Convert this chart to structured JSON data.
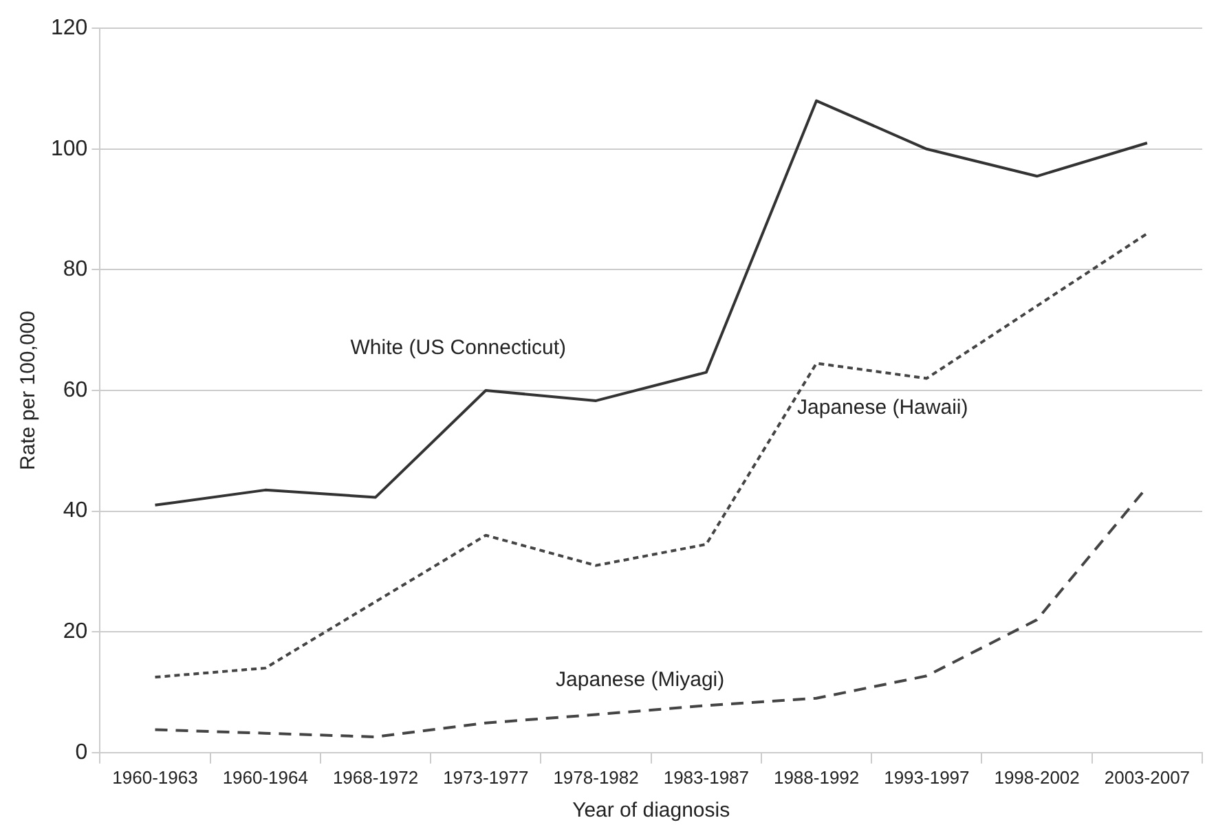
{
  "chart_data": {
    "type": "line",
    "xlabel": "Year of diagnosis",
    "ylabel": "Rate per 100,000",
    "categories": [
      "1960-1963",
      "1960-1964",
      "1968-1972",
      "1973-1977",
      "1978-1982",
      "1983-1987",
      "1988-1992",
      "1993-1997",
      "1998-2002",
      "2003-2007"
    ],
    "series": [
      {
        "name": "White (US Connecticut)",
        "color": "#333333",
        "line_style": "solid",
        "values": [
          41,
          43.5,
          42.3,
          60,
          58.3,
          63,
          108,
          100,
          95.5,
          101
        ]
      },
      {
        "name": "Japanese (Hawaii)",
        "color": "#444444",
        "line_style": "dotted",
        "values": [
          12.5,
          14,
          25,
          36,
          31,
          34.5,
          64.5,
          62,
          74,
          86
        ]
      },
      {
        "name": "Japanese (Miyagi)",
        "color": "#444444",
        "line_style": "dashed",
        "values": [
          3.8,
          3.2,
          2.6,
          4.9,
          6.3,
          7.8,
          9,
          12.7,
          22,
          44
        ]
      }
    ],
    "ylim": [
      0,
      120
    ],
    "yticks": [
      0,
      20,
      40,
      60,
      80,
      100,
      120
    ],
    "grid": "y",
    "legend": false,
    "marker": "none"
  }
}
